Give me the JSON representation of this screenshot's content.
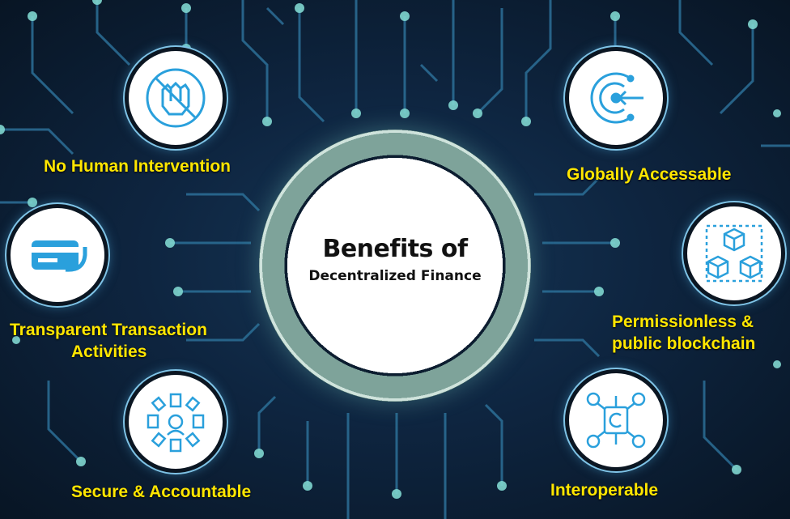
{
  "center": {
    "title": "Benefits of",
    "subtitle": "Decentralized Finance"
  },
  "benefits": [
    {
      "label": "No Human Intervention",
      "icon": "hand-block-icon"
    },
    {
      "label_line1": "Transparent Transaction",
      "label_line2": "Activities",
      "icon": "card-payment-icon"
    },
    {
      "label": "Secure & Accountable",
      "icon": "document-network-icon"
    },
    {
      "label": "Globally Accessable",
      "icon": "global-access-icon"
    },
    {
      "label_line1": "Permissionless &",
      "label_line2": "public blockchain",
      "icon": "blockchain-cubes-icon"
    },
    {
      "label": "Interoperable",
      "icon": "gears-connect-icon"
    }
  ],
  "colors": {
    "background": "#0e2540",
    "circuit": "#2c6f97",
    "node_dot": "#7fd6cf",
    "label": "#ffe600",
    "icon": "#2aa0dc"
  }
}
